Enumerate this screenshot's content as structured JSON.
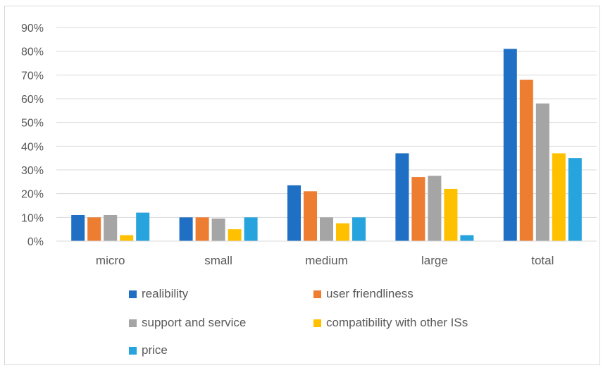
{
  "chart_data": {
    "type": "bar",
    "title": "",
    "xlabel": "",
    "ylabel": "",
    "ylim": [
      0,
      0.9
    ],
    "yticks": [
      "0%",
      "10%",
      "20%",
      "30%",
      "40%",
      "50%",
      "60%",
      "70%",
      "80%",
      "90%"
    ],
    "grid": true,
    "legend_placement": "bottom",
    "categories": [
      "micro",
      "small",
      "medium",
      "large",
      "total"
    ],
    "series": [
      {
        "name": "realibility",
        "color": "#1f6fc4",
        "values": [
          0.11,
          0.1,
          0.235,
          0.37,
          0.81
        ]
      },
      {
        "name": "user friendliness",
        "color": "#ed7d31",
        "values": [
          0.1,
          0.1,
          0.21,
          0.27,
          0.68
        ]
      },
      {
        "name": "support and service",
        "color": "#a5a5a5",
        "values": [
          0.11,
          0.095,
          0.1,
          0.275,
          0.58
        ]
      },
      {
        "name": "compatibility with other ISs",
        "color": "#ffc000",
        "values": [
          0.025,
          0.05,
          0.075,
          0.22,
          0.37
        ]
      },
      {
        "name": "price",
        "color": "#27a3dd",
        "values": [
          0.12,
          0.1,
          0.1,
          0.025,
          0.35
        ]
      }
    ]
  }
}
